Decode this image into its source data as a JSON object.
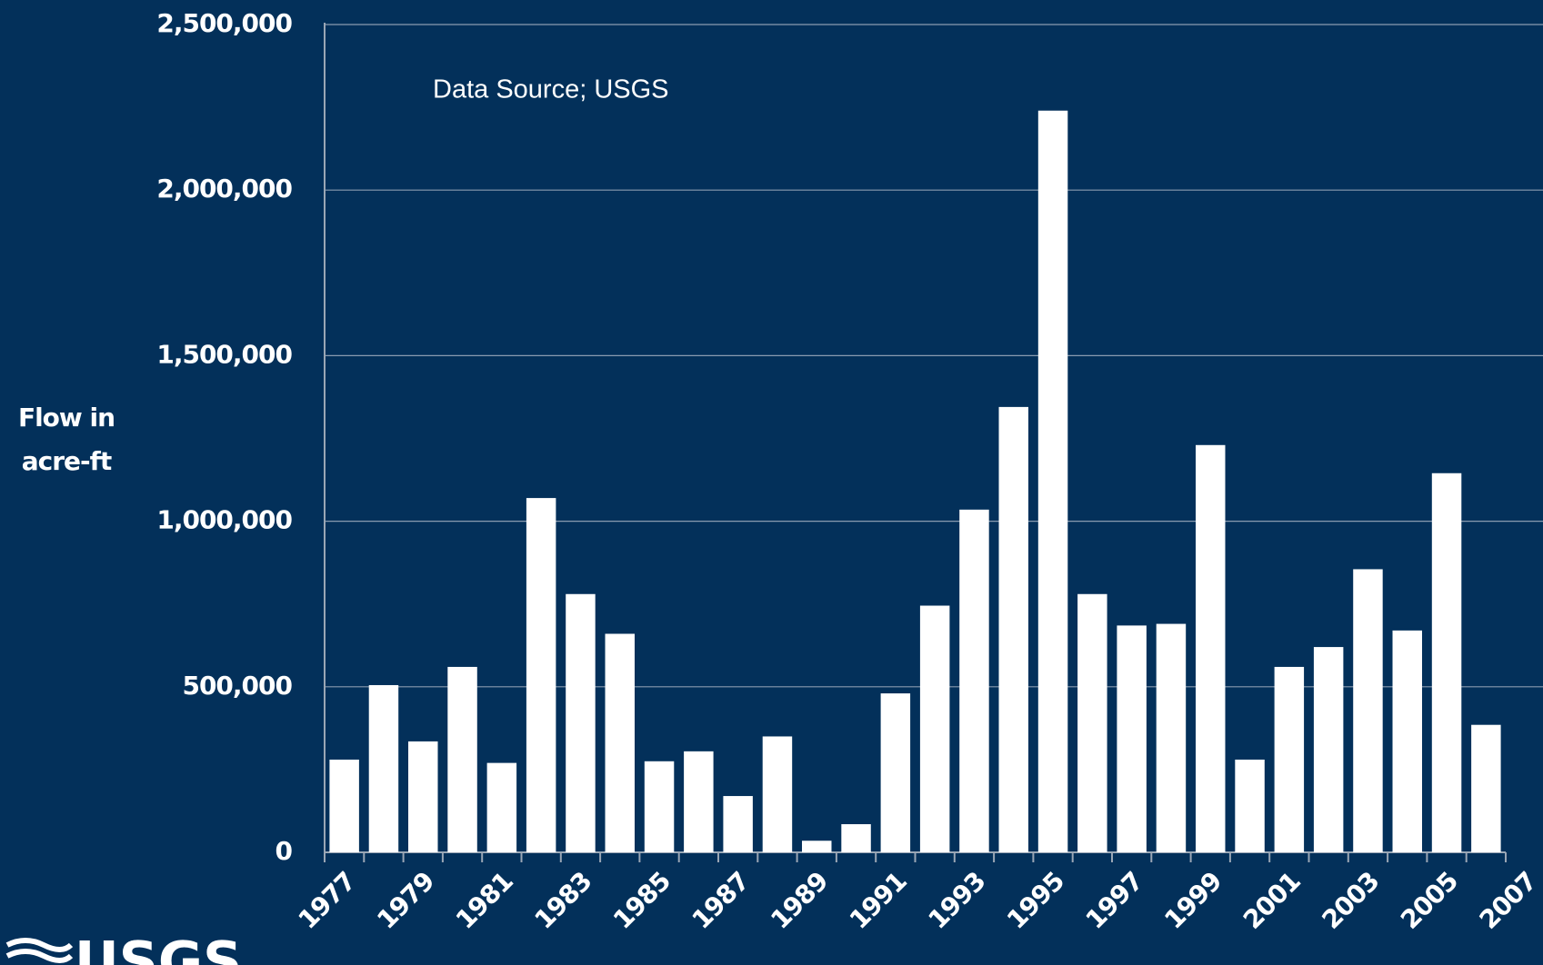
{
  "chart_data": {
    "type": "bar",
    "annotation": "Data Source; USGS",
    "y_label": [
      "Flow in",
      "acre-ft"
    ],
    "logo": "USGS",
    "categories": [
      "1977",
      null,
      "1979",
      null,
      "1981",
      null,
      "1983",
      null,
      "1985",
      null,
      "1987",
      null,
      "1989",
      null,
      "1991",
      null,
      "1993",
      null,
      "1995",
      null,
      "1997",
      null,
      "1999",
      null,
      "2001",
      null,
      "2003",
      null,
      "2005",
      null,
      "2007"
    ],
    "values": [
      280000,
      505000,
      335000,
      560000,
      270000,
      1070000,
      780000,
      660000,
      275000,
      305000,
      170000,
      350000,
      35000,
      85000,
      480000,
      745000,
      1035000,
      1345000,
      2240000,
      780000,
      685000,
      690000,
      1230000,
      280000,
      560000,
      620000,
      855000,
      670000,
      1145000,
      385000,
      null
    ],
    "color": "#ffffff",
    "ylim": [
      0,
      2500000
    ],
    "yticks": [
      0,
      {
        "value": 500000,
        "label": "500,000"
      },
      {
        "value": 1000000,
        "label": "1,000,000"
      },
      {
        "value": 1500000,
        "label": "1,500,000"
      },
      {
        "value": 2000000,
        "label": "2,000,000"
      },
      {
        "value": 2500000,
        "label": "2,500,000"
      }
    ],
    "grid": true
  }
}
